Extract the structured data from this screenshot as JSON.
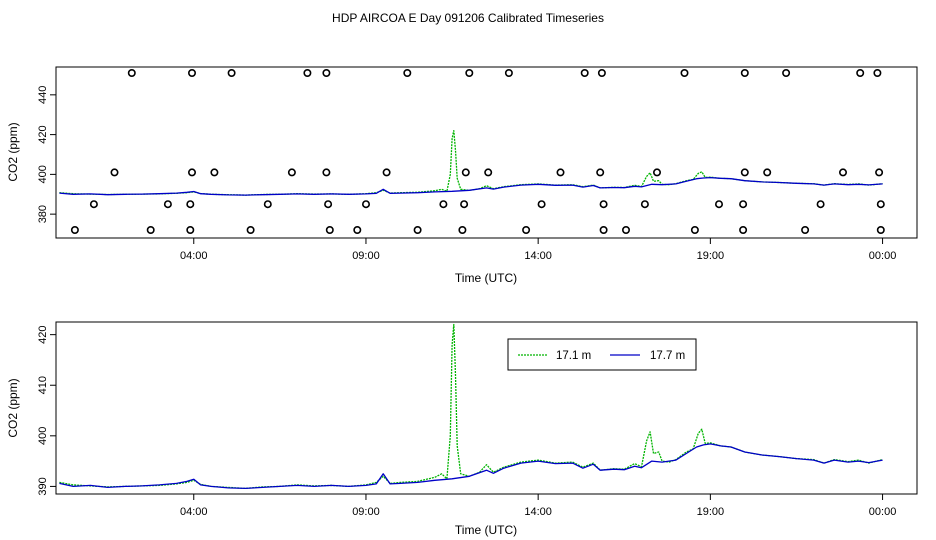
{
  "page": {
    "title": "HDP AIRCOA E  Day 091206  Calibrated Timeseries"
  },
  "colors": {
    "series_17_1": "#00b400",
    "series_17_7": "#0000c8",
    "markers": "#000000",
    "frame": "#000000"
  },
  "chart_data": [
    {
      "type": "scatter+line",
      "title": "",
      "xlabel": "Time (UTC)",
      "ylabel": "CO2 (ppm)",
      "x_unit": "hours (UTC)",
      "xlim": [
        0,
        25
      ],
      "ylim": [
        368,
        454
      ],
      "xticks": [
        {
          "hour": 4,
          "label": "04:00"
        },
        {
          "hour": 9,
          "label": "09:00"
        },
        {
          "hour": 14,
          "label": "14:00"
        },
        {
          "hour": 19,
          "label": "19:00"
        },
        {
          "hour": 24,
          "label": "00:00"
        }
      ],
      "yticks": [
        {
          "value": 380,
          "label": "380"
        },
        {
          "value": 400,
          "label": "400"
        },
        {
          "value": 420,
          "label": "420"
        },
        {
          "value": 440,
          "label": "440"
        }
      ],
      "calibration_points": [
        [
          2.2,
          451
        ],
        [
          3.95,
          451
        ],
        [
          5.1,
          451
        ],
        [
          7.3,
          451
        ],
        [
          7.85,
          451
        ],
        [
          10.2,
          451
        ],
        [
          12.0,
          451
        ],
        [
          13.15,
          451
        ],
        [
          15.35,
          451
        ],
        [
          15.85,
          451
        ],
        [
          18.25,
          451
        ],
        [
          20.0,
          451
        ],
        [
          21.2,
          451
        ],
        [
          23.35,
          451
        ],
        [
          23.85,
          451
        ],
        [
          1.7,
          401
        ],
        [
          3.95,
          401
        ],
        [
          4.6,
          401
        ],
        [
          6.85,
          401
        ],
        [
          7.85,
          401
        ],
        [
          9.6,
          401
        ],
        [
          11.9,
          401
        ],
        [
          12.55,
          401
        ],
        [
          14.65,
          401
        ],
        [
          15.8,
          401
        ],
        [
          17.45,
          401
        ],
        [
          20.0,
          401
        ],
        [
          20.65,
          401
        ],
        [
          22.85,
          401
        ],
        [
          23.9,
          401
        ],
        [
          1.1,
          385
        ],
        [
          3.25,
          385
        ],
        [
          3.9,
          385
        ],
        [
          6.15,
          385
        ],
        [
          7.9,
          385
        ],
        [
          9.0,
          385
        ],
        [
          11.25,
          385
        ],
        [
          11.85,
          385
        ],
        [
          14.1,
          385
        ],
        [
          15.9,
          385
        ],
        [
          17.1,
          385
        ],
        [
          19.25,
          385
        ],
        [
          19.95,
          385
        ],
        [
          22.2,
          385
        ],
        [
          23.95,
          385
        ],
        [
          0.55,
          372
        ],
        [
          2.75,
          372
        ],
        [
          3.9,
          372
        ],
        [
          5.65,
          372
        ],
        [
          7.95,
          372
        ],
        [
          8.75,
          372
        ],
        [
          10.5,
          372
        ],
        [
          11.8,
          372
        ],
        [
          13.65,
          372
        ],
        [
          15.9,
          372
        ],
        [
          16.55,
          372
        ],
        [
          18.55,
          372
        ],
        [
          19.95,
          372
        ],
        [
          21.75,
          372
        ],
        [
          23.95,
          372
        ]
      ],
      "series": [
        {
          "name": "17.1 m",
          "points": [
            [
              0.1,
              390.8
            ],
            [
              0.5,
              390.3
            ],
            [
              1.0,
              390.1
            ],
            [
              1.5,
              389.9
            ],
            [
              2.0,
              390.0
            ],
            [
              2.5,
              390.1
            ],
            [
              3.0,
              390.2
            ],
            [
              3.5,
              390.5
            ],
            [
              3.8,
              390.8
            ],
            [
              4.0,
              391.2
            ],
            [
              4.2,
              390.4
            ],
            [
              4.5,
              390.0
            ],
            [
              5.0,
              389.8
            ],
            [
              5.5,
              389.6
            ],
            [
              6.0,
              389.9
            ],
            [
              6.5,
              390.0
            ],
            [
              7.0,
              390.3
            ],
            [
              7.5,
              390.1
            ],
            [
              8.0,
              390.2
            ],
            [
              8.5,
              390.0
            ],
            [
              9.0,
              390.3
            ],
            [
              9.3,
              390.8
            ],
            [
              9.5,
              392.0
            ],
            [
              9.7,
              390.6
            ],
            [
              10.0,
              390.8
            ],
            [
              10.5,
              391.0
            ],
            [
              11.0,
              391.8
            ],
            [
              11.2,
              392.5
            ],
            [
              11.35,
              391.5
            ],
            [
              11.45,
              400.0
            ],
            [
              11.5,
              418.0
            ],
            [
              11.55,
              422.0
            ],
            [
              11.6,
              412.0
            ],
            [
              11.65,
              398.0
            ],
            [
              11.75,
              392.5
            ],
            [
              12.0,
              392.0
            ],
            [
              12.3,
              392.8
            ],
            [
              12.5,
              394.3
            ],
            [
              12.7,
              392.8
            ],
            [
              13.0,
              393.8
            ],
            [
              13.5,
              394.8
            ],
            [
              14.0,
              395.2
            ],
            [
              14.5,
              394.6
            ],
            [
              15.0,
              394.8
            ],
            [
              15.3,
              393.8
            ],
            [
              15.6,
              394.6
            ],
            [
              15.8,
              393.2
            ],
            [
              16.2,
              393.5
            ],
            [
              16.5,
              393.4
            ],
            [
              16.8,
              394.5
            ],
            [
              17.0,
              393.9
            ],
            [
              17.15,
              399.0
            ],
            [
              17.25,
              400.8
            ],
            [
              17.35,
              396.5
            ],
            [
              17.5,
              396.8
            ],
            [
              17.6,
              395.0
            ],
            [
              17.8,
              394.8
            ],
            [
              18.0,
              395.3
            ],
            [
              18.3,
              396.8
            ],
            [
              18.5,
              397.4
            ],
            [
              18.65,
              400.5
            ],
            [
              18.75,
              401.3
            ],
            [
              18.85,
              398.5
            ],
            [
              19.0,
              398.6
            ],
            [
              19.3,
              398.0
            ],
            [
              19.6,
              397.8
            ],
            [
              20.0,
              396.8
            ],
            [
              20.5,
              396.2
            ],
            [
              21.0,
              395.9
            ],
            [
              21.5,
              395.5
            ],
            [
              22.0,
              395.3
            ],
            [
              22.3,
              394.6
            ],
            [
              22.6,
              395.3
            ],
            [
              23.0,
              394.9
            ],
            [
              23.3,
              395.2
            ],
            [
              23.6,
              394.6
            ],
            [
              24.0,
              395.3
            ]
          ]
        },
        {
          "name": "17.7 m",
          "points": [
            [
              0.1,
              390.6
            ],
            [
              0.5,
              390.0
            ],
            [
              1.0,
              390.2
            ],
            [
              1.5,
              389.8
            ],
            [
              2.0,
              390.0
            ],
            [
              2.5,
              390.1
            ],
            [
              3.0,
              390.3
            ],
            [
              3.5,
              390.6
            ],
            [
              3.8,
              391.0
            ],
            [
              4.0,
              391.4
            ],
            [
              4.2,
              390.3
            ],
            [
              4.5,
              390.0
            ],
            [
              5.0,
              389.7
            ],
            [
              5.5,
              389.6
            ],
            [
              6.0,
              389.8
            ],
            [
              6.5,
              390.0
            ],
            [
              7.0,
              390.2
            ],
            [
              7.5,
              390.0
            ],
            [
              8.0,
              390.2
            ],
            [
              8.5,
              390.0
            ],
            [
              9.0,
              390.2
            ],
            [
              9.3,
              390.5
            ],
            [
              9.5,
              392.5
            ],
            [
              9.7,
              390.5
            ],
            [
              10.0,
              390.6
            ],
            [
              10.5,
              390.8
            ],
            [
              11.0,
              391.2
            ],
            [
              11.5,
              391.5
            ],
            [
              12.0,
              392.0
            ],
            [
              12.5,
              393.2
            ],
            [
              12.7,
              392.6
            ],
            [
              13.0,
              393.6
            ],
            [
              13.5,
              394.6
            ],
            [
              14.0,
              395.0
            ],
            [
              14.5,
              394.5
            ],
            [
              15.0,
              394.6
            ],
            [
              15.3,
              393.6
            ],
            [
              15.6,
              394.4
            ],
            [
              15.8,
              393.2
            ],
            [
              16.2,
              393.4
            ],
            [
              16.5,
              393.3
            ],
            [
              16.8,
              394.0
            ],
            [
              17.0,
              393.7
            ],
            [
              17.3,
              395.0
            ],
            [
              17.6,
              394.8
            ],
            [
              18.0,
              395.2
            ],
            [
              18.3,
              396.5
            ],
            [
              18.6,
              397.8
            ],
            [
              18.8,
              398.2
            ],
            [
              19.0,
              398.4
            ],
            [
              19.3,
              398.0
            ],
            [
              19.6,
              397.8
            ],
            [
              20.0,
              396.8
            ],
            [
              20.5,
              396.2
            ],
            [
              21.0,
              395.9
            ],
            [
              21.5,
              395.5
            ],
            [
              22.0,
              395.2
            ],
            [
              22.3,
              394.6
            ],
            [
              22.6,
              395.2
            ],
            [
              23.0,
              394.8
            ],
            [
              23.3,
              395.0
            ],
            [
              23.6,
              394.7
            ],
            [
              24.0,
              395.2
            ]
          ]
        }
      ]
    },
    {
      "type": "line",
      "title": "",
      "xlabel": "Time (UTC)",
      "ylabel": "CO2 (ppm)",
      "x_unit": "hours (UTC)",
      "xlim": [
        0,
        25
      ],
      "ylim": [
        388.5,
        422.5
      ],
      "xticks": [
        {
          "hour": 4,
          "label": "04:00"
        },
        {
          "hour": 9,
          "label": "09:00"
        },
        {
          "hour": 14,
          "label": "14:00"
        },
        {
          "hour": 19,
          "label": "19:00"
        },
        {
          "hour": 24,
          "label": "00:00"
        }
      ],
      "yticks": [
        {
          "value": 390,
          "label": "390"
        },
        {
          "value": 400,
          "label": "400"
        },
        {
          "value": 410,
          "label": "410"
        },
        {
          "value": 420,
          "label": "420"
        }
      ],
      "legend": {
        "position": "top-right",
        "entries": [
          {
            "name": "17.1 m",
            "color": "#00b400"
          },
          {
            "name": "17.7 m",
            "color": "#0000c8"
          }
        ]
      },
      "series_ref": "same data as panel 1 series"
    }
  ]
}
